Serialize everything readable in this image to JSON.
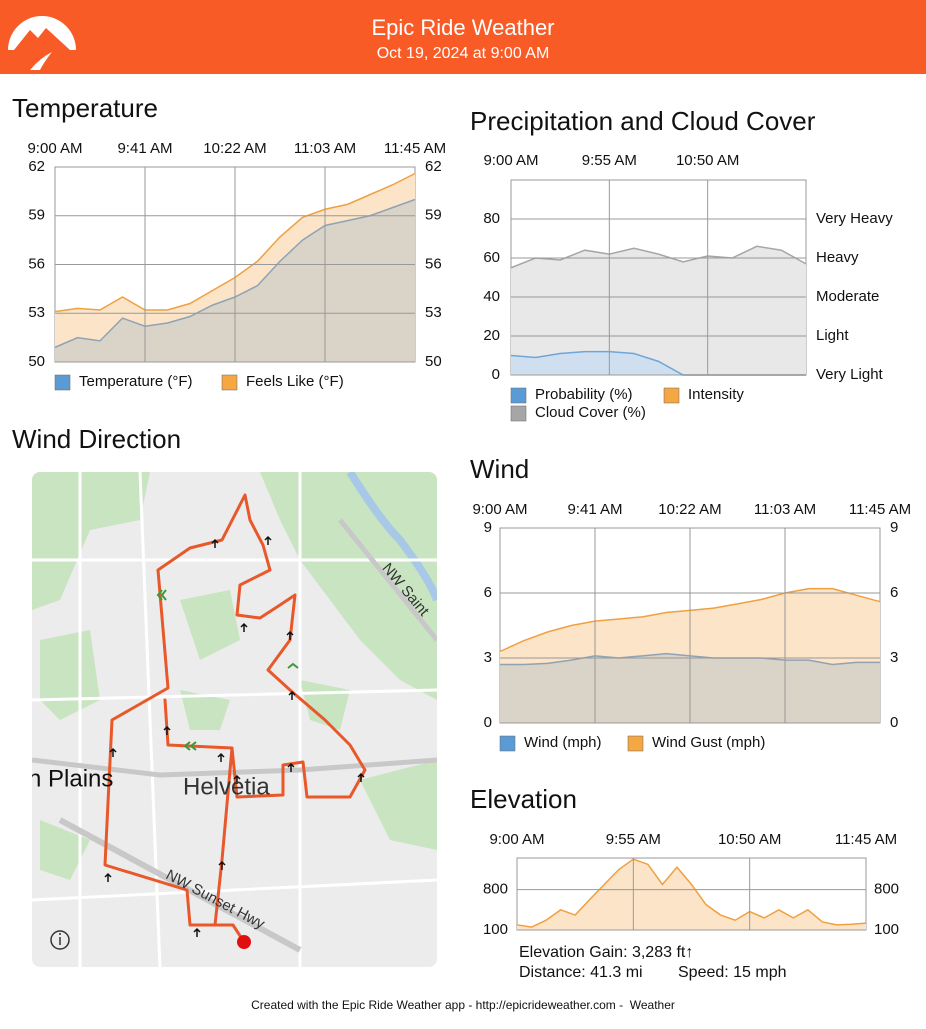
{
  "header": {
    "title": "Epic Ride Weather",
    "subtitle": "Oct 19, 2024 at 9:00 AM"
  },
  "map": {
    "title": "Wind Direction",
    "labels": [
      "n Plains",
      "Helvetia",
      "NW Sunset Hwy",
      "NW Saint"
    ]
  },
  "footer": "Created with the Epic Ride Weather app - http://epicrideweather.com -  Weather",
  "chart_data": [
    {
      "type": "area",
      "title": "Temperature",
      "categories": [
        "9:00 AM",
        null,
        null,
        null,
        "9:41 AM",
        null,
        null,
        null,
        "10:22 AM",
        null,
        null,
        null,
        "11:03 AM",
        null,
        null,
        null,
        "11:45 AM"
      ],
      "series": [
        {
          "name": "Temperature (°F)",
          "color": "#5b9bd5",
          "line": "#8fa3b5",
          "fill": "#d9d3c8",
          "values": [
            50.9,
            51.5,
            51.3,
            52.7,
            52.2,
            52.4,
            52.8,
            53.5,
            54.0,
            54.7,
            56.2,
            57.5,
            58.4,
            58.7,
            59.0,
            59.5,
            60.0
          ]
        },
        {
          "name": "Feels Like (°F)",
          "color": "#f5a742",
          "line": "#f0a040",
          "fill": "#fbe4c8",
          "values": [
            53.1,
            53.3,
            53.2,
            54.0,
            53.2,
            53.2,
            53.6,
            54.4,
            55.2,
            56.2,
            57.7,
            58.9,
            59.4,
            59.7,
            60.3,
            60.9,
            61.6
          ]
        }
      ],
      "ylim": [
        50,
        62
      ],
      "yticks": [
        50,
        53,
        56,
        59,
        62
      ],
      "labels_both_sides": true,
      "grid": true
    },
    {
      "type": "area",
      "title": "Precipitation and Cloud Cover",
      "categories": [
        "9:00 AM",
        null,
        null,
        null,
        "9:55 AM",
        null,
        null,
        null,
        "10:50 AM",
        null,
        null,
        null,
        null
      ],
      "series": [
        {
          "name": "Probability (%)",
          "color": "#5b9bd5",
          "line": "#6fa5d8",
          "fill": "#cfdff0",
          "values": [
            10,
            9,
            11,
            12,
            12,
            11,
            7,
            0,
            0,
            0,
            0,
            0,
            0
          ]
        },
        {
          "name": "Intensity",
          "color": "#f5a742",
          "line": "#f0a040",
          "fill": "#fbe4c8",
          "axis": "y2",
          "values": [
            1,
            1,
            1,
            2,
            2,
            2,
            1,
            0,
            0,
            0,
            0,
            0,
            0
          ]
        },
        {
          "name": "Cloud Cover (%)",
          "color": "#a6a6a6",
          "line": "#a6a6a6",
          "fill": "#e8e8e8",
          "values": [
            55,
            60,
            59,
            64,
            62,
            65,
            62,
            58,
            61,
            60,
            66,
            64,
            57
          ]
        }
      ],
      "ylim": [
        0,
        100
      ],
      "yticks": [
        0,
        20,
        40,
        60,
        80
      ],
      "y2lim": [
        0,
        100
      ],
      "y2ticks": [
        {
          "value": 0,
          "label": "Very Light"
        },
        {
          "value": 20,
          "label": "Light"
        },
        {
          "value": 40,
          "label": "Moderate"
        },
        {
          "value": 60,
          "label": "Heavy"
        },
        {
          "value": 80,
          "label": "Very Heavy"
        }
      ],
      "grid": true
    },
    {
      "type": "area",
      "title": "Wind",
      "categories": [
        "9:00 AM",
        null,
        null,
        null,
        "9:41 AM",
        null,
        null,
        null,
        "10:22 AM",
        null,
        null,
        null,
        "11:03 AM",
        null,
        null,
        null,
        "11:45 AM"
      ],
      "series": [
        {
          "name": "Wind (mph)",
          "color": "#5b9bd5",
          "line": "#8fa3b5",
          "fill": "#d9d3c8",
          "values": [
            2.7,
            2.7,
            2.75,
            2.9,
            3.1,
            3.0,
            3.1,
            3.2,
            3.1,
            3.0,
            3.0,
            3.0,
            2.9,
            2.9,
            2.7,
            2.8,
            2.8
          ]
        },
        {
          "name": "Wind Gust (mph)",
          "color": "#f5a742",
          "line": "#f0a040",
          "fill": "#fbe4c8",
          "values": [
            3.3,
            3.8,
            4.2,
            4.5,
            4.7,
            4.8,
            4.9,
            5.1,
            5.2,
            5.3,
            5.5,
            5.7,
            6.0,
            6.2,
            6.2,
            5.9,
            5.6
          ]
        }
      ],
      "ylim": [
        0,
        9
      ],
      "yticks": [
        0,
        3,
        6,
        9
      ],
      "labels_both_sides": true,
      "grid": true
    },
    {
      "type": "area",
      "title": "Elevation",
      "categories": [
        "9:00 AM",
        null,
        null,
        null,
        null,
        null,
        null,
        null,
        "9:55 AM",
        null,
        null,
        null,
        null,
        null,
        null,
        null,
        "10:50 AM",
        null,
        null,
        null,
        null,
        null,
        null,
        null,
        "11:45 AM"
      ],
      "values": [
        190,
        150,
        270,
        450,
        360,
        630,
        890,
        1150,
        1330,
        1240,
        890,
        1190,
        890,
        540,
        360,
        270,
        420,
        310,
        450,
        310,
        450,
        240,
        190,
        200,
        220
      ],
      "color": "#f0a040",
      "fill": "#fbe4c8",
      "ylim": [
        100,
        1350
      ],
      "yticks": [
        100,
        800
      ],
      "labels_both_sides": true,
      "grid": true,
      "annotations": [
        "Elevation Gain: 3,283 ft↑",
        "Distance: 41.3 mi",
        "Speed: 15 mph"
      ]
    }
  ]
}
